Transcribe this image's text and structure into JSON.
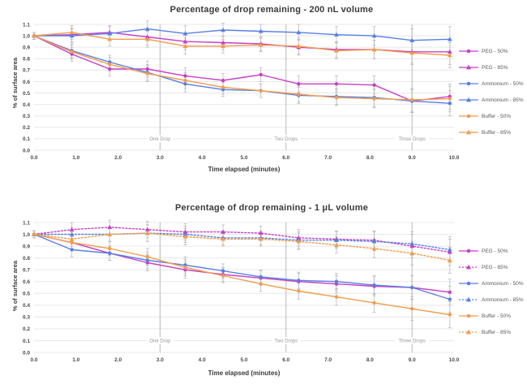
{
  "figure": {
    "background": "#ffffff",
    "substances": [
      "PEG",
      "Ammonium",
      "Buffer"
    ],
    "humidity_levels": [
      "50%",
      "85%"
    ]
  },
  "colors": {
    "peg": "#c73fc7",
    "ammonium": "#577fe6",
    "buffer": "#f29c4b",
    "gridline": "#e8e8e8",
    "annotation_line": "#b8b8b8",
    "annotation_text": "#999999",
    "error_bar": "#b5b5b5",
    "tick_text": "#4a4a4a",
    "title_text": "#3a3a3a"
  },
  "chart_data": [
    {
      "type": "line",
      "title": "Percentage of drop remaining - 200 nL volume",
      "xlabel": "Time elapsed (minutes)",
      "ylabel": "% of surface area",
      "xlim": [
        0,
        10
      ],
      "ylim": [
        0,
        1.1
      ],
      "x_tick_labels": [
        "0.0",
        "1.0",
        "2.0",
        "3.0",
        "4.0",
        "5.0",
        "6.0",
        "7.0",
        "8.0",
        "9.0",
        "10.0"
      ],
      "y_tick_labels": [
        "0.0",
        "0.1",
        "0.2",
        "0.3",
        "0.4",
        "0.5",
        "0.6",
        "0.7",
        "0.8",
        "0.9",
        "1.0",
        "1.1"
      ],
      "grid": true,
      "legend_position": "right",
      "x": [
        0.0,
        0.9,
        1.8,
        2.7,
        3.6,
        4.5,
        5.4,
        6.3,
        7.2,
        8.1,
        9.0,
        9.9
      ],
      "errors": [
        0.03,
        0.06,
        0.06,
        0.07,
        0.07,
        0.06,
        0.06,
        0.07,
        0.07,
        0.08,
        0.1,
        0.11
      ],
      "annotations": [
        {
          "label": "One Drop",
          "x": 3.0
        },
        {
          "label": "Two Drops",
          "x": 6.0
        },
        {
          "label": "Three Drops",
          "x": 9.0
        }
      ],
      "series": [
        {
          "name": "PEG - 50%",
          "color": "#c73fc7",
          "style": "solid",
          "marker": "circle",
          "values": [
            1.0,
            0.84,
            0.71,
            0.71,
            0.65,
            0.61,
            0.66,
            0.58,
            0.58,
            0.57,
            0.43,
            0.47
          ]
        },
        {
          "name": "PEG - 85%",
          "color": "#c73fc7",
          "style": "solid",
          "marker": "triangle",
          "values": [
            1.0,
            1.01,
            1.03,
            0.99,
            0.95,
            0.94,
            0.93,
            0.9,
            0.88,
            0.88,
            0.86,
            0.86
          ]
        },
        {
          "name": "Ammonium - 50%",
          "color": "#577fe6",
          "style": "solid",
          "marker": "circle",
          "values": [
            1.0,
            0.87,
            0.77,
            0.68,
            0.58,
            0.53,
            0.52,
            0.48,
            0.47,
            0.46,
            0.43,
            0.41
          ]
        },
        {
          "name": "Ammonium - 85%",
          "color": "#577fe6",
          "style": "solid",
          "marker": "triangle",
          "values": [
            1.0,
            1.0,
            1.02,
            1.06,
            1.02,
            1.05,
            1.04,
            1.03,
            1.01,
            1.0,
            0.96,
            0.97
          ]
        },
        {
          "name": "Buffer - 50%",
          "color": "#f29c4b",
          "style": "solid",
          "marker": "circle",
          "values": [
            1.0,
            0.86,
            0.75,
            0.67,
            0.61,
            0.55,
            0.52,
            0.49,
            0.46,
            0.45,
            0.44,
            0.45
          ]
        },
        {
          "name": "Buffer - 85%",
          "color": "#f29c4b",
          "style": "solid",
          "marker": "triangle",
          "values": [
            1.0,
            1.03,
            0.97,
            0.97,
            0.91,
            0.91,
            0.92,
            0.91,
            0.87,
            0.88,
            0.85,
            0.83
          ]
        }
      ]
    },
    {
      "type": "line",
      "title": "Percentage of drop remaining - 1 μL volume",
      "xlabel": "Time elapsed (minutes)",
      "ylabel": "% of surface area",
      "xlim": [
        0,
        10
      ],
      "ylim": [
        0,
        1.1
      ],
      "x_tick_labels": [
        "0.0",
        "1.0",
        "2.0",
        "3.0",
        "4.0",
        "5.0",
        "6.0",
        "7.0",
        "8.0",
        "9.0",
        "10.0"
      ],
      "y_tick_labels": [
        "0.0",
        "0.1",
        "0.2",
        "0.3",
        "0.4",
        "0.5",
        "0.6",
        "0.7",
        "0.8",
        "0.9",
        "1.0",
        "1.1"
      ],
      "grid": true,
      "legend_position": "right",
      "x": [
        0.0,
        0.9,
        1.8,
        2.7,
        3.6,
        4.5,
        5.4,
        6.3,
        7.2,
        8.1,
        9.0,
        9.9
      ],
      "errors": [
        0.03,
        0.06,
        0.06,
        0.07,
        0.07,
        0.06,
        0.06,
        0.07,
        0.07,
        0.08,
        0.1,
        0.11
      ],
      "annotations": [
        {
          "label": "One Drop",
          "x": 3.0
        },
        {
          "label": "Two Drops",
          "x": 6.0
        },
        {
          "label": "Three Drops",
          "x": 9.0
        }
      ],
      "series": [
        {
          "name": "PEG - 50%",
          "color": "#c73fc7",
          "style": "solid",
          "marker": "circle",
          "values": [
            1.0,
            0.93,
            0.84,
            0.76,
            0.7,
            0.66,
            0.63,
            0.6,
            0.58,
            0.56,
            0.55,
            0.51
          ]
        },
        {
          "name": "PEG - 85%",
          "color": "#c73fc7",
          "style": "dotted",
          "marker": "triangle",
          "values": [
            1.0,
            1.04,
            1.06,
            1.04,
            1.02,
            1.02,
            1.01,
            0.97,
            0.96,
            0.95,
            0.9,
            0.85
          ]
        },
        {
          "name": "Ammonium - 50%",
          "color": "#577fe6",
          "style": "solid",
          "marker": "circle",
          "values": [
            1.0,
            0.87,
            0.84,
            0.78,
            0.74,
            0.69,
            0.64,
            0.61,
            0.6,
            0.57,
            0.55,
            0.45
          ]
        },
        {
          "name": "Ammonium - 85%",
          "color": "#577fe6",
          "style": "dotted",
          "marker": "triangle",
          "values": [
            1.0,
            1.0,
            1.0,
            1.01,
            1.0,
            0.97,
            0.97,
            0.95,
            0.95,
            0.94,
            0.92,
            0.87
          ]
        },
        {
          "name": "Buffer - 50%",
          "color": "#f29c4b",
          "style": "solid",
          "marker": "circle",
          "values": [
            1.0,
            0.93,
            0.88,
            0.81,
            0.72,
            0.65,
            0.58,
            0.52,
            0.47,
            0.42,
            0.37,
            0.32
          ]
        },
        {
          "name": "Buffer - 85%",
          "color": "#f29c4b",
          "style": "dotted",
          "marker": "triangle",
          "values": [
            1.0,
            0.96,
            1.0,
            1.01,
            0.98,
            0.96,
            0.96,
            0.94,
            0.91,
            0.88,
            0.84,
            0.78
          ]
        }
      ]
    }
  ]
}
